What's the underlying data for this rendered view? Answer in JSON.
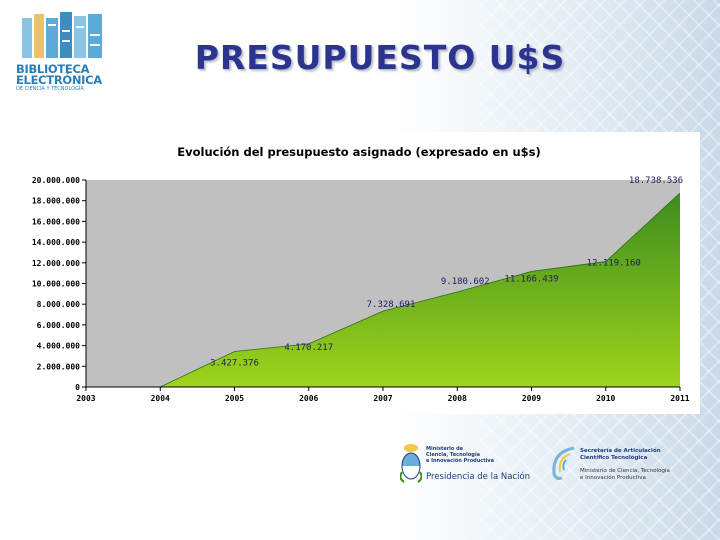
{
  "slide": {
    "title": "PRESUPUESTO U$S"
  },
  "logo": {
    "line1": "BIBLIOTECA",
    "line2": "ELECTRÓNICA",
    "line3": "DE CIENCIA Y TECNOLOGÍA",
    "colors": [
      "#5da9d8",
      "#8cc4e6",
      "#e8b94b",
      "#3d8cc4"
    ]
  },
  "footer": {
    "ministry_line1": "Ministerio de",
    "ministry_line2": "Ciencia, Tecnología",
    "ministry_line3": "e Innovación Productiva",
    "ministry_main": "Presidencia de la Nación",
    "sec_line1": "Secretaría de Articulación",
    "sec_line2": "Científico Tecnológica",
    "sec_sub1": "Ministerio de Ciencia, Tecnología",
    "sec_sub2": "e Innovación Productiva"
  },
  "chart_data": {
    "type": "area",
    "title": "Evolución del presupuesto asignado (expresado en u$s)",
    "categories": [
      "2003",
      "2004",
      "2005",
      "2006",
      "2007",
      "2008",
      "2009",
      "2010",
      "2011"
    ],
    "series": [
      {
        "values": [
          0,
          0,
          3427376,
          4170217,
          7328691,
          9180602,
          11166439,
          12119160,
          18738536
        ]
      }
    ],
    "data_labels": [
      "",
      "",
      "3.427.376",
      "4.170.217",
      "7.328.691",
      "9.180.602",
      "11.166.439",
      "12.119.160",
      "18.738.536"
    ],
    "ylim": [
      0,
      20000000
    ],
    "y_ticks": [
      0,
      2000000,
      4000000,
      6000000,
      8000000,
      10000000,
      12000000,
      14000000,
      16000000,
      18000000,
      20000000
    ],
    "y_tick_labels": [
      "0",
      "2.000.000",
      "4.000.000",
      "6.000.000",
      "8.000.000",
      "10.000.000",
      "12.000.000",
      "14.000.000",
      "16.000.000",
      "18.000.000",
      "20.000.000"
    ],
    "plot_background": "#c0c0c0",
    "fill_top_color": "#3d8c1e",
    "fill_bottom_color": "#9fd41c",
    "grid": false,
    "legend": "none"
  }
}
